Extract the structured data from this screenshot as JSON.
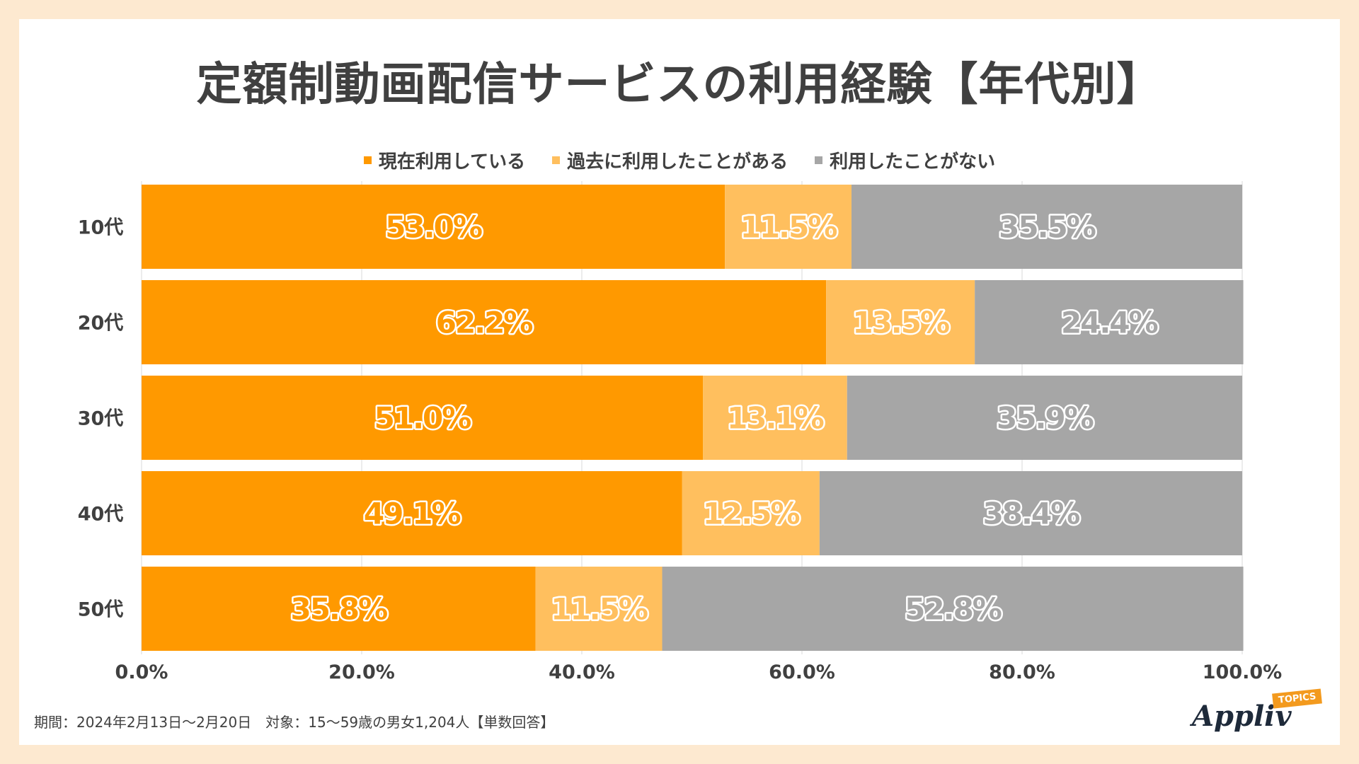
{
  "title": "定額制動画配信サービスの利用経験【年代別】",
  "footnote": "期間：2024年2月13日～2月20日　対象：15～59歳の男女1,204人【単数回答】",
  "logo": {
    "name": "Appliv",
    "badge": "TOPICS"
  },
  "chart_data": {
    "type": "bar",
    "orientation": "horizontal",
    "stacked": true,
    "title": "定額制動画配信サービスの利用経験【年代別】",
    "categories": [
      "10代",
      "20代",
      "30代",
      "40代",
      "50代"
    ],
    "series": [
      {
        "name": "現在利用している",
        "color": "#ff9900",
        "values": [
          53.0,
          62.2,
          51.0,
          49.1,
          35.8
        ],
        "labels": [
          "53.0%",
          "62.2%",
          "51.0%",
          "49.1%",
          "35.8%"
        ]
      },
      {
        "name": "過去に利用したことがある",
        "color": "#ffbf5e",
        "values": [
          11.5,
          13.5,
          13.1,
          12.5,
          11.5
        ],
        "labels": [
          "11.5%",
          "13.5%",
          "13.1%",
          "12.5%",
          "11.5%"
        ]
      },
      {
        "name": "利用したことがない",
        "color": "#a6a6a6",
        "values": [
          35.5,
          24.4,
          35.9,
          38.4,
          52.8
        ],
        "labels": [
          "35.5%",
          "24.4%",
          "35.9%",
          "38.4%",
          "52.8%"
        ]
      }
    ],
    "xlim": [
      0,
      100
    ],
    "xticks": [
      "0.0%",
      "20.0%",
      "40.0%",
      "60.0%",
      "80.0%",
      "100.0%"
    ],
    "grid": true,
    "legend": "top"
  }
}
